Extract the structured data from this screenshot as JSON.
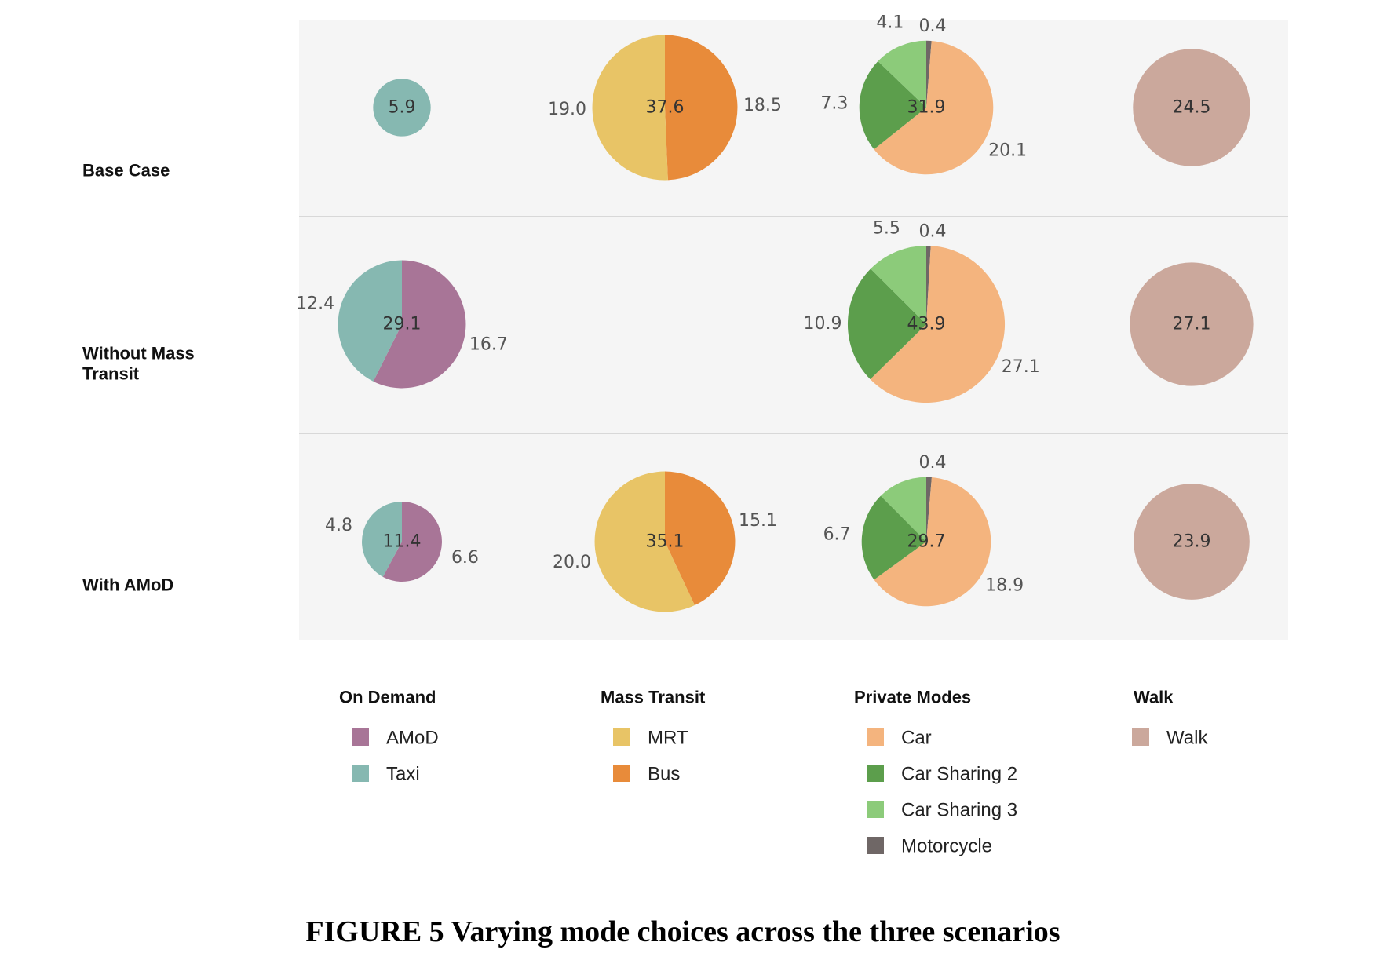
{
  "caption": "FIGURE 5  Varying mode choices across the three scenarios",
  "chart_data": {
    "type": "pie",
    "colors": {
      "AMoD": "#a87597",
      "Taxi": "#86b8b1",
      "MRT": "#e8c466",
      "Bus": "#e88b3a",
      "Car": "#f4b47e",
      "Car Sharing 2": "#5c9e4c",
      "Car Sharing 3": "#8ccb7a",
      "Motorcycle": "#6f6766",
      "Walk": "#cba89c"
    },
    "panel_background": "#f5f5f5",
    "rows": [
      {
        "label": "Base Case",
        "groups": [
          {
            "group": "On Demand",
            "total": "5.9",
            "slices": [
              {
                "name": "Taxi",
                "value": 5.9
              }
            ],
            "outer_labels": []
          },
          {
            "group": "Mass Transit",
            "total": "37.6",
            "slices": [
              {
                "name": "Bus",
                "value": 18.5
              },
              {
                "name": "MRT",
                "value": 19.0
              }
            ],
            "outer_labels": [
              "18.5",
              "19.0"
            ]
          },
          {
            "group": "Private Modes",
            "total": "31.9",
            "slices": [
              {
                "name": "Motorcycle",
                "value": 0.4
              },
              {
                "name": "Car",
                "value": 20.1
              },
              {
                "name": "Car Sharing 2",
                "value": 7.3
              },
              {
                "name": "Car Sharing 3",
                "value": 4.1
              }
            ],
            "outer_labels": [
              "0.4",
              "20.1",
              "7.3",
              "4.1"
            ]
          },
          {
            "group": "Walk",
            "total": "24.5",
            "slices": [
              {
                "name": "Walk",
                "value": 24.5
              }
            ],
            "outer_labels": []
          }
        ]
      },
      {
        "label": "Without Mass Transit",
        "label_lines": [
          "Without Mass",
          "Transit"
        ],
        "groups": [
          {
            "group": "On Demand",
            "total": "29.1",
            "slices": [
              {
                "name": "AMoD",
                "value": 16.7
              },
              {
                "name": "Taxi",
                "value": 12.4
              }
            ],
            "outer_labels": [
              "16.7",
              "12.4"
            ]
          },
          null,
          {
            "group": "Private Modes",
            "total": "43.9",
            "slices": [
              {
                "name": "Motorcycle",
                "value": 0.4
              },
              {
                "name": "Car",
                "value": 27.1
              },
              {
                "name": "Car Sharing 2",
                "value": 10.9
              },
              {
                "name": "Car Sharing 3",
                "value": 5.5
              }
            ],
            "outer_labels": [
              "0.4",
              "27.1",
              "10.9",
              "5.5"
            ]
          },
          {
            "group": "Walk",
            "total": "27.1",
            "slices": [
              {
                "name": "Walk",
                "value": 27.1
              }
            ],
            "outer_labels": []
          }
        ]
      },
      {
        "label": "With AMoD",
        "groups": [
          {
            "group": "On Demand",
            "total": "11.4",
            "slices": [
              {
                "name": "AMoD",
                "value": 6.6
              },
              {
                "name": "Taxi",
                "value": 4.8
              }
            ],
            "outer_labels": [
              "6.6",
              "4.8"
            ]
          },
          {
            "group": "Mass Transit",
            "total": "35.1",
            "slices": [
              {
                "name": "Bus",
                "value": 15.1
              },
              {
                "name": "MRT",
                "value": 20.0
              }
            ],
            "outer_labels": [
              "15.1",
              "20.0"
            ]
          },
          {
            "group": "Private Modes",
            "total": "29.7",
            "slices": [
              {
                "name": "Motorcycle",
                "value": 0.4
              },
              {
                "name": "Car",
                "value": 18.9
              },
              {
                "name": "Car Sharing 2",
                "value": 6.7
              },
              {
                "name": "Car Sharing 3",
                "value": 3.7
              }
            ],
            "outer_labels": [
              "0.4",
              "18.9",
              "6.7",
              ""
            ]
          },
          {
            "group": "Walk",
            "total": "23.9",
            "slices": [
              {
                "name": "Walk",
                "value": 23.9
              }
            ],
            "outer_labels": []
          }
        ]
      }
    ],
    "legend": [
      {
        "title": "On Demand",
        "items": [
          "AMoD",
          "Taxi"
        ]
      },
      {
        "title": "Mass Transit",
        "items": [
          "MRT",
          "Bus"
        ]
      },
      {
        "title": "Private Modes",
        "items": [
          "Car",
          "Car Sharing 2",
          "Car Sharing 3",
          "Motorcycle"
        ]
      },
      {
        "title": "Walk",
        "items": [
          "Walk"
        ]
      }
    ]
  }
}
